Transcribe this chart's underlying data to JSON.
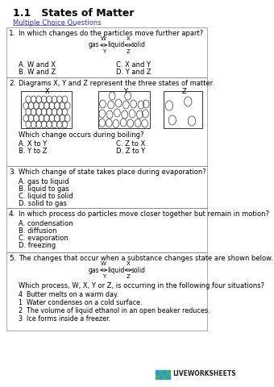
{
  "title": "1.1   States of Matter",
  "subtitle": "Multiple Choice Questions",
  "background_color": "#ffffff",
  "border_color": "#888888",
  "q1": {
    "num": "1.",
    "text": "In which changes do the particles move further apart?",
    "choices_left": [
      "A. W and X",
      "B. W and Z"
    ],
    "choices_right": [
      "C. X and Y",
      "D. Y and Z"
    ]
  },
  "q2": {
    "num": "2.",
    "text": "Diagrams X, Y and Z represent the three states of matter.",
    "question": "Which change occurs during boiling?",
    "choices_left": [
      "A. X to Y",
      "B. Y to Z"
    ],
    "choices_right": [
      "C. Z to X",
      "D. Z to Y"
    ]
  },
  "q3": {
    "num": "3.",
    "text": "Which change of state takes place during evaporation?",
    "choices": [
      "A. gas to liquid",
      "B. liquid to gas",
      "C. liquid to solid",
      "D. solid to gas"
    ]
  },
  "q4": {
    "num": "4.",
    "text": "In which process do particles move closer together but remain in motion?",
    "choices": [
      "A. condensation",
      "B. diffusion",
      "C. evaporation",
      "D. freezing"
    ]
  },
  "q5": {
    "num": "5.",
    "text": "The changes that occur when a substance changes state are shown below.",
    "question": "Which process, W, X, Y or Z, is occurring in the following four situations?",
    "situations": [
      "4  Butter melts on a warm day.",
      "1  Water condenses on a cold surface.",
      "2  The volume of liquid ethanol in an open beaker reduces.",
      "3  Ice forms inside a freezer."
    ]
  },
  "logo_green": "#4CAF50",
  "logo_blue": "#2196F3",
  "logo_text": "LIVEWORKSHEETS"
}
